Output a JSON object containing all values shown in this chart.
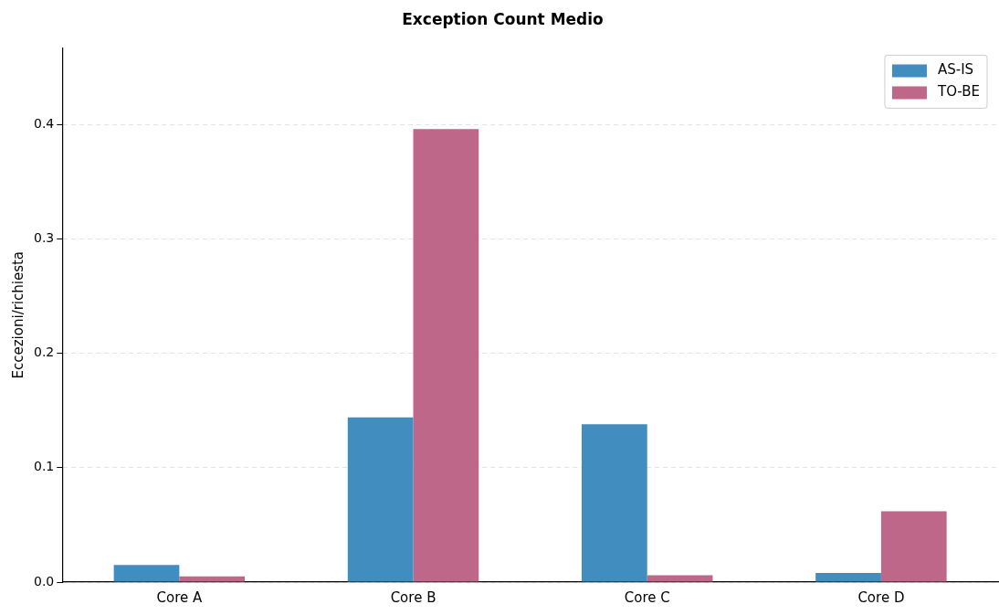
{
  "chart_data": {
    "type": "bar",
    "title": "Exception Count Medio",
    "ylabel": "Eccezioni/richiesta",
    "categories": [
      "Core A",
      "Core B",
      "Core C",
      "Core D"
    ],
    "series": [
      {
        "name": "AS-IS",
        "color": "#428dc0",
        "values": [
          0.015,
          0.144,
          0.138,
          0.008
        ]
      },
      {
        "name": "TO-BE",
        "color": "#be6788",
        "values": [
          0.005,
          0.396,
          0.006,
          0.062
        ]
      }
    ],
    "ylim": [
      0,
      0.467
    ],
    "yticks": [
      {
        "value": 0,
        "label": "0.0"
      },
      0.1,
      0.2,
      0.3,
      0.4
    ],
    "grid": "y",
    "legend": "top right"
  }
}
